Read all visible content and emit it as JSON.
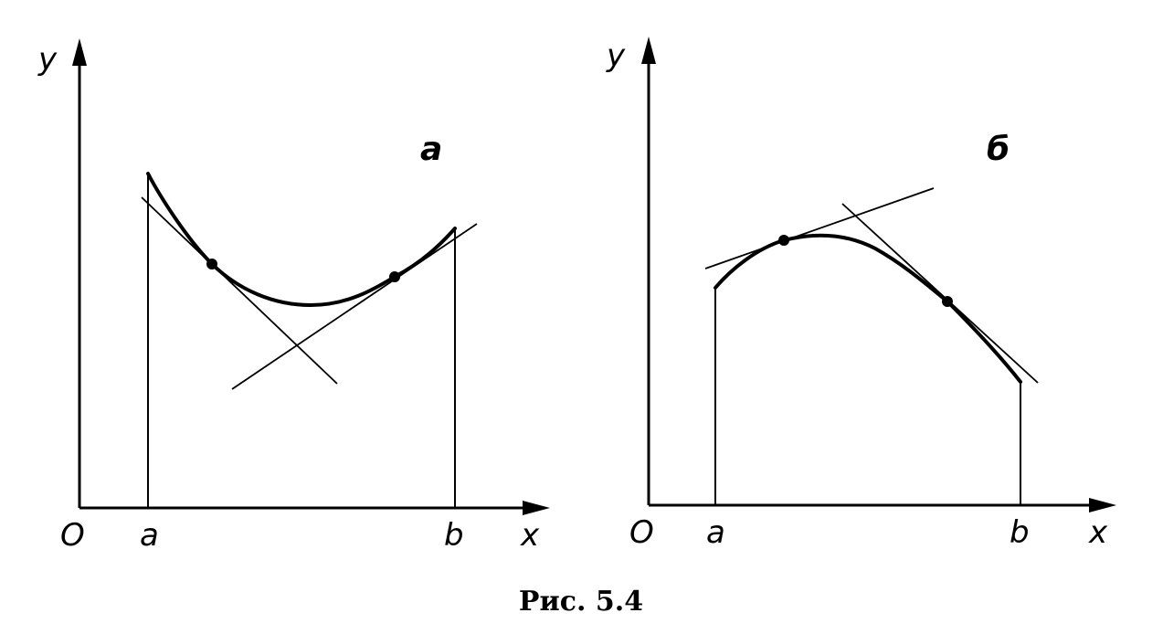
{
  "panel_a": {
    "label": "a",
    "y_axis_label": "y",
    "x_axis_label": "x",
    "origin_label": "O",
    "left_bound_label": "a",
    "right_bound_label": "b"
  },
  "panel_b": {
    "label": "б",
    "y_axis_label": "y",
    "x_axis_label": "x",
    "origin_label": "O",
    "left_bound_label": "a",
    "right_bound_label": "b"
  },
  "caption": "Рис. 5.4"
}
